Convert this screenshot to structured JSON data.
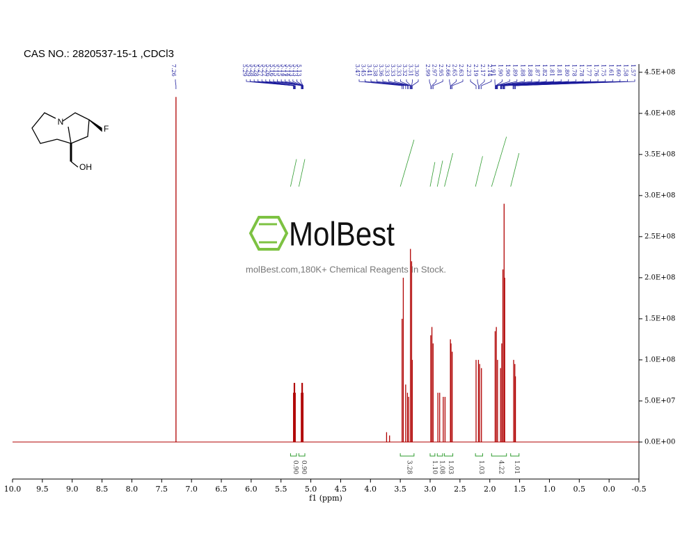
{
  "chart_data": {
    "type": "spectrum",
    "title": "CAS NO.: 2820537-15-1 ,CDCl3",
    "x_label": "f1 (ppm)",
    "xlim": [
      10,
      -0.5
    ],
    "xticks": [
      {
        "value": 10,
        "label": "10.0"
      },
      9.5,
      {
        "value": 9,
        "label": "9.0"
      },
      8.5,
      {
        "value": 8,
        "label": "8.0"
      },
      7.5,
      {
        "value": 7,
        "label": "7.0"
      },
      6.5,
      {
        "value": 6,
        "label": "6.0"
      },
      5.5,
      {
        "value": 5,
        "label": "5.0"
      },
      4.5,
      {
        "value": 4,
        "label": "4.0"
      },
      3.5,
      {
        "value": 3,
        "label": "3.0"
      },
      2.5,
      {
        "value": 2,
        "label": "2.0"
      },
      1.5,
      {
        "value": 1,
        "label": "1.0"
      },
      0.5,
      {
        "value": 0,
        "label": "0.0"
      },
      -0.5
    ],
    "ylim": [
      -45000000,
      460000000
    ],
    "yticks": [
      {
        "value": 0,
        "label": "0.0E+00"
      },
      {
        "value": 50000000,
        "label": "5.0E+07"
      },
      {
        "value": 100000000,
        "label": "1.0E+08"
      },
      {
        "value": 150000000,
        "label": "1.5E+08"
      },
      {
        "value": 200000000,
        "label": "2.0E+08"
      },
      {
        "value": 250000000,
        "label": "2.5E+08"
      },
      {
        "value": 300000000,
        "label": "3.0E+08"
      },
      {
        "value": 350000000,
        "label": "3.5E+08"
      },
      {
        "value": 400000000,
        "label": "4.0E+08"
      },
      {
        "value": 450000000,
        "label": "4.5E+08"
      }
    ],
    "color": "#b00000",
    "x": [
      7.26,
      5.29,
      5.28,
      5.27,
      5.26,
      5.16,
      5.15,
      5.14,
      5.13,
      3.73,
      3.68,
      3.47,
      3.45,
      3.41,
      3.38,
      3.36,
      3.33,
      3.31,
      3.3,
      2.99,
      2.97,
      2.95,
      2.87,
      2.84,
      2.78,
      2.75,
      2.66,
      2.65,
      2.63,
      2.23,
      2.19,
      2.17,
      2.14,
      1.91,
      1.89,
      1.87,
      1.82,
      1.8,
      1.78,
      1.76,
      1.75,
      1.6,
      1.58,
      1.57
    ],
    "values": [
      420000000,
      60000000,
      72000000,
      72000000,
      60000000,
      60000000,
      72000000,
      72000000,
      60000000,
      12000000,
      8000000,
      150000000,
      200000000,
      70000000,
      60000000,
      55000000,
      235000000,
      220000000,
      100000000,
      130000000,
      140000000,
      120000000,
      60000000,
      60000000,
      55000000,
      55000000,
      125000000,
      120000000,
      110000000,
      100000000,
      100000000,
      95000000,
      90000000,
      135000000,
      140000000,
      100000000,
      90000000,
      120000000,
      210000000,
      290000000,
      200000000,
      100000000,
      95000000,
      80000000
    ],
    "peak_label_color": "#1c1c9c",
    "peak_labels": [
      [
        7.26
      ],
      [
        5.29,
        5.29,
        5.28,
        5.28,
        5.27,
        5.27,
        5.26,
        5.16,
        5.15,
        5.15,
        5.14,
        5.14,
        5.13,
        5.13,
        5.13
      ],
      [
        3.47,
        3.45,
        3.41,
        3.38,
        3.36,
        3.33,
        3.33,
        3.33,
        3.32,
        3.31,
        {
          "value": 3.3,
          "label": "3.30"
        }
      ],
      [
        2.99,
        2.97,
        2.95,
        2.66,
        2.65,
        2.63
      ],
      [
        2.23,
        2.19,
        2.17,
        2.14
      ],
      [
        1.91,
        {
          "value": 1.9,
          "label": "1.90"
        },
        {
          "value": 1.9,
          "label": "1.90"
        },
        1.89,
        1.88,
        1.88,
        1.87,
        1.82,
        1.81,
        1.81,
        {
          "value": 1.8,
          "label": "1.80"
        },
        1.78,
        1.78,
        1.77,
        1.76,
        1.75,
        1.61,
        {
          "value": 1.6,
          "label": "1.60"
        },
        1.58,
        1.57
      ]
    ],
    "integral_color": "#2e9b2e",
    "integrals": [
      {
        "range": [
          5.34,
          5.24
        ],
        "label": "0.90"
      },
      {
        "range": [
          5.2,
          5.1
        ],
        "label": "0.90"
      },
      {
        "range": [
          3.5,
          3.27
        ],
        "label": "3.28"
      },
      {
        "range": [
          3.0,
          2.92
        ],
        "label": "1.10"
      },
      {
        "range": [
          2.88,
          2.79
        ],
        "label": "1.08"
      },
      {
        "range": [
          2.76,
          2.62
        ],
        "label": "1.03"
      },
      {
        "range": [
          2.24,
          2.12
        ],
        "label": "1.03"
      },
      {
        "range": [
          1.97,
          1.72
        ],
        "label": "4.22"
      },
      {
        "range": [
          1.65,
          1.51
        ],
        "label": "1.01"
      }
    ]
  },
  "structure": {
    "atoms": [
      "N",
      "F",
      "OH"
    ]
  },
  "watermark": {
    "logo": "MolBest",
    "text": "molBest.com,180K+ Chemical Reagents In Stock."
  }
}
